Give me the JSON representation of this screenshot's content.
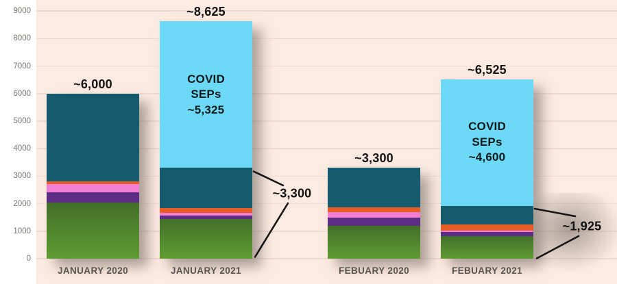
{
  "colors": {
    "background": "#fdeae0",
    "margin": "#ffffff",
    "gridline": "#f0dbd2",
    "tick_text": "#7a746d",
    "category_text": "#57534e",
    "value_text": "#141414",
    "covid_text": "#0e191c",
    "annotation_text": "#121212",
    "annotation_line": "#151515",
    "series": {
      "green_top": "#436f29",
      "green_bottom": "#609c33",
      "purple": "#5c2d84",
      "pink": "#f37fd3",
      "orange": "#e85c28",
      "teal": "#165b6d",
      "covid": "#6cdaf7"
    }
  },
  "chart_data": {
    "type": "bar",
    "stacked": true,
    "grid": true,
    "legend": false,
    "ylim": [
      0,
      9000
    ],
    "ytick_labels": [
      "9000",
      "8000",
      "7000",
      "6000",
      "5000",
      "4000",
      "3000",
      "2000",
      "1000",
      "0"
    ],
    "categories": [
      "JANUARY 2020",
      "JANUARY 2021",
      "FEBUARY 2020",
      "FEBUARY 2021"
    ],
    "series": [
      {
        "name": "green-base-segment",
        "color_key": "green",
        "values": [
          2050,
          1450,
          1200,
          820
        ]
      },
      {
        "name": "purple-segment",
        "color_key": "purple",
        "values": [
          350,
          125,
          300,
          150
        ]
      },
      {
        "name": "pink-segment",
        "color_key": "pink",
        "values": [
          300,
          100,
          200,
          50
        ]
      },
      {
        "name": "orange-segment",
        "color_key": "orange",
        "values": [
          100,
          175,
          175,
          225
        ]
      },
      {
        "name": "teal-segment",
        "color_key": "teal",
        "values": [
          3200,
          1450,
          1425,
          680
        ]
      },
      {
        "name": "covid-seps-segment",
        "color_key": "covid",
        "values": [
          0,
          5325,
          0,
          4600
        ]
      }
    ],
    "totals": [
      6000,
      8625,
      3300,
      6525
    ],
    "total_labels": [
      "~6,000",
      "~8,625",
      "~3,300",
      "~6,525"
    ],
    "covid_inbar_labels": [
      {
        "bar_index": 1,
        "lines": [
          "COVID",
          "SEPs",
          "~5,325"
        ]
      },
      {
        "bar_index": 3,
        "lines": [
          "COVID",
          "SEPs",
          "~4,600"
        ]
      }
    ],
    "annotations": [
      {
        "text": "~3,300"
      },
      {
        "text": "~1,925"
      }
    ]
  }
}
